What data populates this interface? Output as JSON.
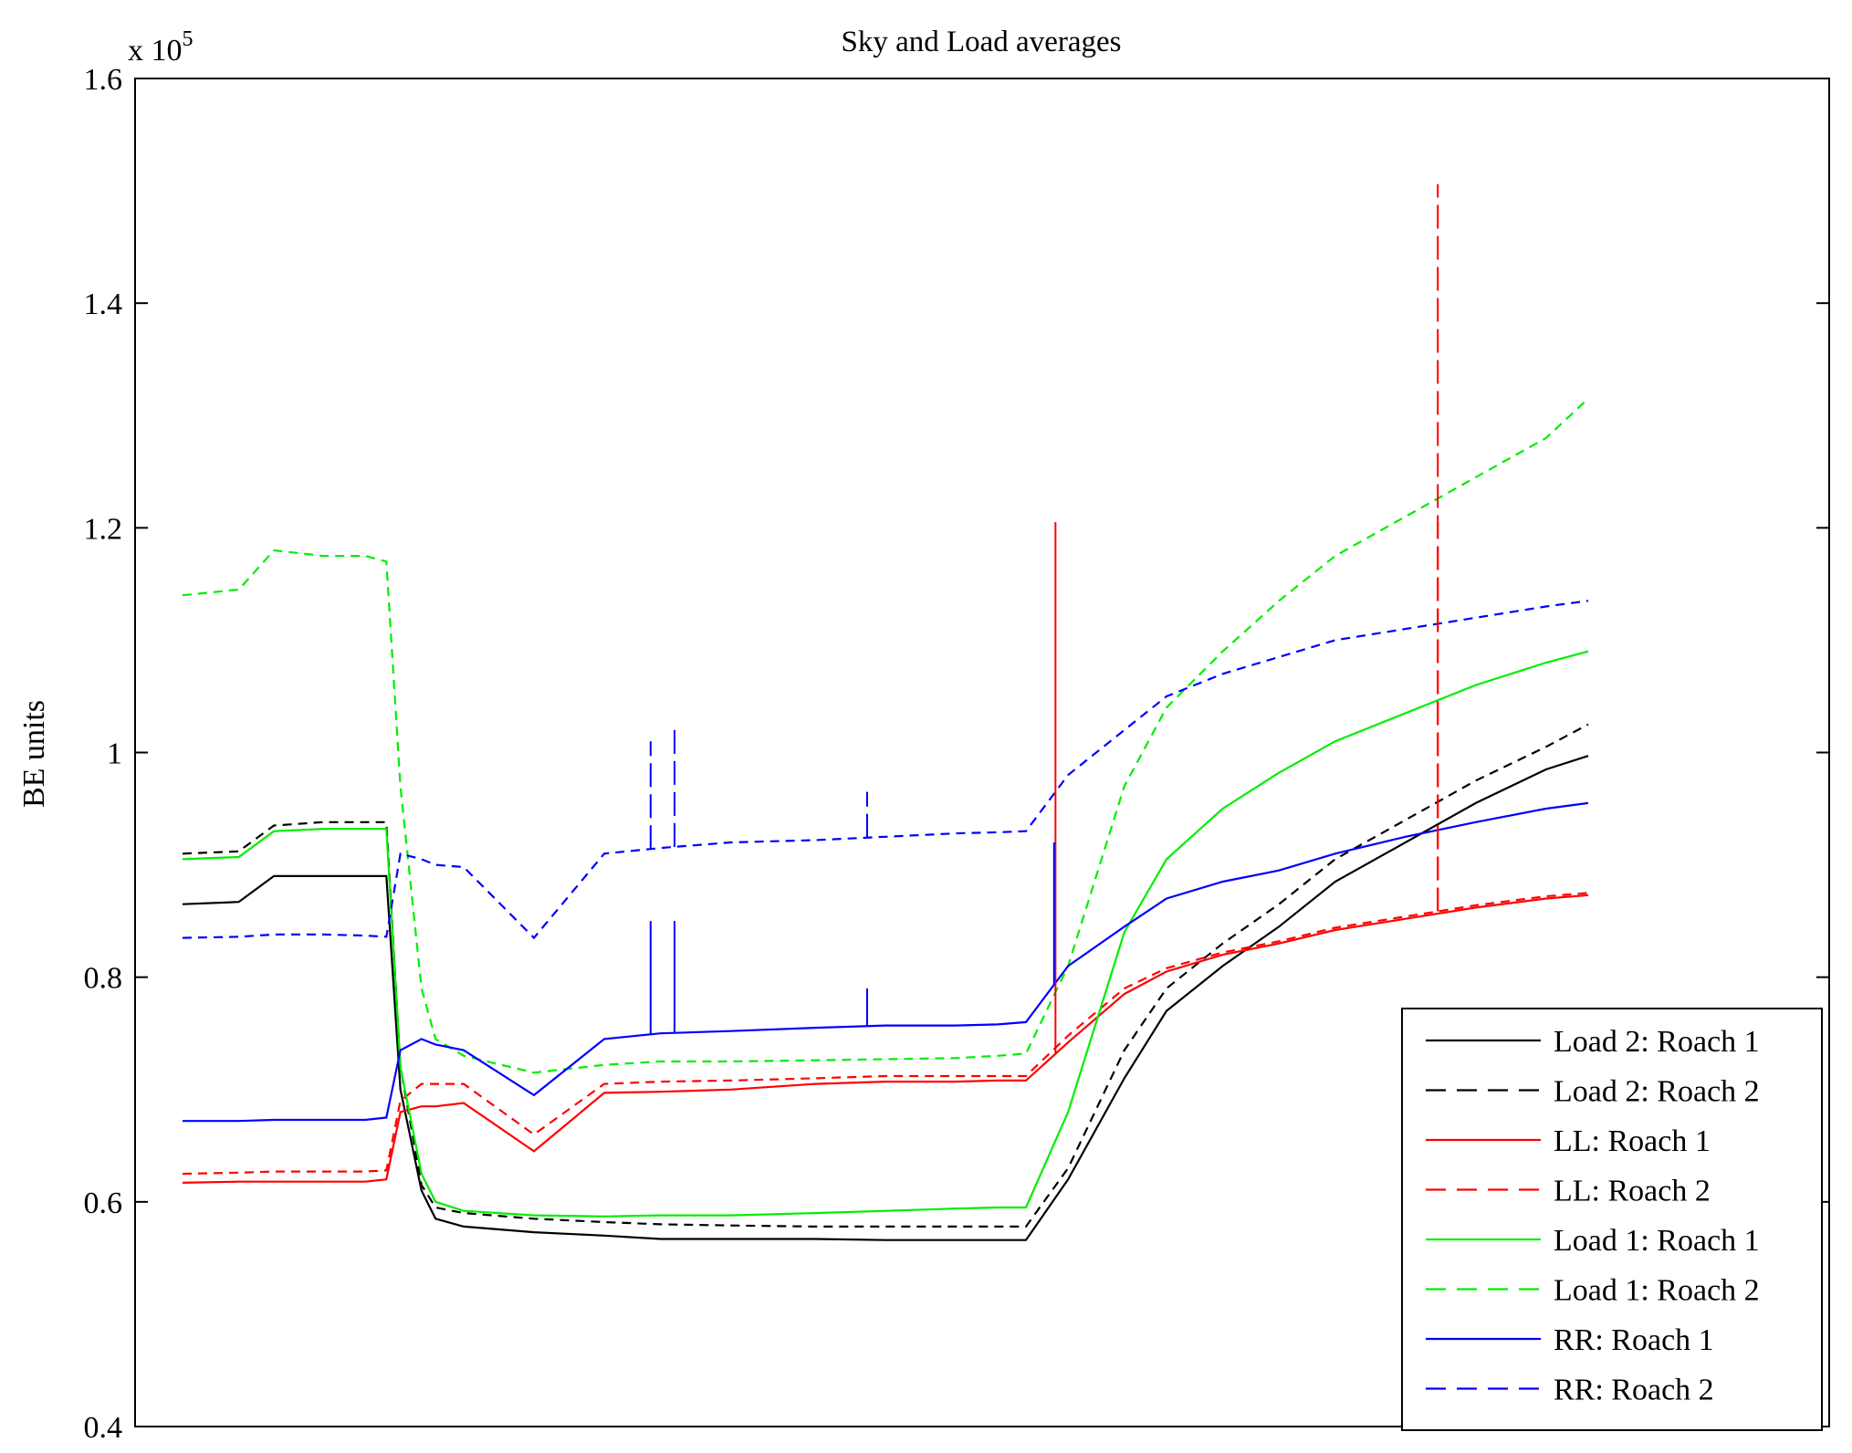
{
  "chart_data": {
    "type": "line",
    "title": "Sky and Load averages",
    "xlabel": "",
    "ylabel": "BE units",
    "y_multiplier_base": "x 10",
    "y_multiplier_exp": "5",
    "ylim": [
      0.4,
      1.6
    ],
    "xlim": [
      0,
      1
    ],
    "yticks": [
      0.4,
      0.6,
      0.8,
      1.0,
      1.2,
      1.4,
      1.6
    ],
    "ytick_labels": [
      "0.4",
      "0.6",
      "0.8",
      "1",
      "1.2",
      "1.4",
      "1.6"
    ],
    "xticks_shown": false,
    "grid": false,
    "legend_position": "bottom-right",
    "x": [
      0.0,
      0.04,
      0.065,
      0.1,
      0.13,
      0.145,
      0.155,
      0.17,
      0.18,
      0.2,
      0.25,
      0.3,
      0.34,
      0.39,
      0.45,
      0.5,
      0.55,
      0.58,
      0.6,
      0.63,
      0.67,
      0.7,
      0.74,
      0.78,
      0.82,
      0.87,
      0.92,
      0.97,
      1.0
    ],
    "series": [
      {
        "name": "Load 2: Roach 1",
        "color": "#000000",
        "dash": "solid",
        "values": [
          0.865,
          0.867,
          0.89,
          0.89,
          0.89,
          0.89,
          0.7,
          0.61,
          0.585,
          0.578,
          0.573,
          0.57,
          0.567,
          0.567,
          0.567,
          0.566,
          0.566,
          0.566,
          0.566,
          0.62,
          0.71,
          0.77,
          0.81,
          0.845,
          0.885,
          0.92,
          0.955,
          0.985,
          0.997
        ]
      },
      {
        "name": "Load 2: Roach 2",
        "color": "#000000",
        "dash": "dashed",
        "values": [
          0.91,
          0.912,
          0.935,
          0.938,
          0.938,
          0.938,
          0.72,
          0.615,
          0.595,
          0.59,
          0.585,
          0.582,
          0.58,
          0.579,
          0.578,
          0.578,
          0.578,
          0.578,
          0.578,
          0.63,
          0.735,
          0.79,
          0.83,
          0.865,
          0.905,
          0.94,
          0.975,
          1.005,
          1.025
        ]
      },
      {
        "name": "LL: Roach 1",
        "color": "#ff0000",
        "dash": "solid",
        "values": [
          0.617,
          0.618,
          0.618,
          0.618,
          0.618,
          0.62,
          0.68,
          0.685,
          0.685,
          0.688,
          0.645,
          0.697,
          0.698,
          0.7,
          0.705,
          0.707,
          0.707,
          0.708,
          0.708,
          0.742,
          0.785,
          0.805,
          0.82,
          0.83,
          0.842,
          0.852,
          0.862,
          0.87,
          0.873
        ]
      },
      {
        "name": "LL: Roach 2",
        "color": "#ff0000",
        "dash": "dashed",
        "values": [
          0.625,
          0.626,
          0.627,
          0.627,
          0.627,
          0.628,
          0.69,
          0.705,
          0.705,
          0.705,
          0.66,
          0.705,
          0.707,
          0.708,
          0.71,
          0.712,
          0.712,
          0.712,
          0.712,
          0.748,
          0.79,
          0.808,
          0.822,
          0.832,
          0.844,
          0.854,
          0.864,
          0.872,
          0.875
        ]
      },
      {
        "name": "Load 1: Roach 1",
        "color": "#00ee00",
        "dash": "solid",
        "values": [
          0.905,
          0.907,
          0.93,
          0.932,
          0.932,
          0.932,
          0.72,
          0.625,
          0.6,
          0.592,
          0.588,
          0.587,
          0.588,
          0.588,
          0.59,
          0.592,
          0.594,
          0.595,
          0.595,
          0.68,
          0.84,
          0.905,
          0.95,
          0.982,
          1.01,
          1.035,
          1.06,
          1.08,
          1.09
        ]
      },
      {
        "name": "Load 1: Roach 2",
        "color": "#00ee00",
        "dash": "dashed",
        "values": [
          1.14,
          1.145,
          1.18,
          1.175,
          1.175,
          1.17,
          0.97,
          0.79,
          0.745,
          0.73,
          0.715,
          0.722,
          0.725,
          0.725,
          0.726,
          0.727,
          0.728,
          0.73,
          0.732,
          0.81,
          0.97,
          1.04,
          1.09,
          1.135,
          1.175,
          1.21,
          1.245,
          1.28,
          1.315
        ]
      },
      {
        "name": "RR: Roach 1",
        "color": "#0000ff",
        "dash": "solid",
        "values": [
          0.672,
          0.672,
          0.673,
          0.673,
          0.673,
          0.675,
          0.735,
          0.745,
          0.74,
          0.735,
          0.695,
          0.745,
          0.75,
          0.752,
          0.755,
          0.757,
          0.757,
          0.758,
          0.76,
          0.81,
          0.845,
          0.87,
          0.885,
          0.895,
          0.91,
          0.925,
          0.938,
          0.95,
          0.955
        ]
      },
      {
        "name": "RR: Roach 2",
        "color": "#0000ff",
        "dash": "dashed",
        "values": [
          0.835,
          0.836,
          0.838,
          0.838,
          0.837,
          0.836,
          0.91,
          0.905,
          0.9,
          0.898,
          0.835,
          0.91,
          0.915,
          0.92,
          0.922,
          0.925,
          0.928,
          0.929,
          0.93,
          0.98,
          1.02,
          1.05,
          1.07,
          1.085,
          1.1,
          1.11,
          1.12,
          1.13,
          1.135
        ]
      }
    ],
    "spikes": [
      {
        "series": 3,
        "x": 0.893,
        "y": 1.506
      },
      {
        "series": 3,
        "x": 0.893,
        "y": 1.205
      },
      {
        "series": 2,
        "x": 0.621,
        "y": 1.205
      },
      {
        "series": 7,
        "x": 0.333,
        "y": 1.01
      },
      {
        "series": 7,
        "x": 0.35,
        "y": 1.02
      },
      {
        "series": 6,
        "x": 0.333,
        "y": 0.85
      },
      {
        "series": 6,
        "x": 0.35,
        "y": 0.85
      },
      {
        "series": 7,
        "x": 0.487,
        "y": 0.965
      },
      {
        "series": 6,
        "x": 0.487,
        "y": 0.79
      },
      {
        "series": 6,
        "x": 0.62,
        "y": 0.92
      }
    ]
  }
}
